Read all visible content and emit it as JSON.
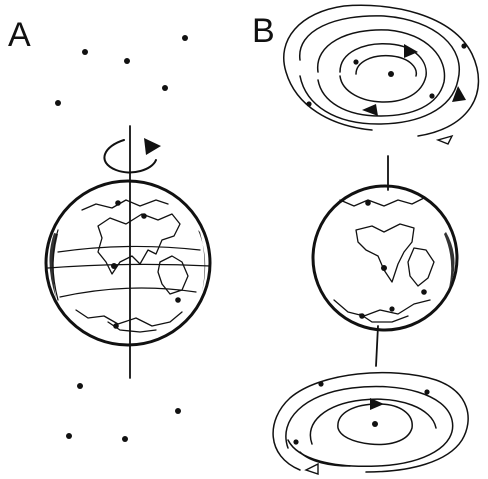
{
  "panels": [
    {
      "id": "A",
      "label": "A"
    },
    {
      "id": "B",
      "label": "B"
    }
  ],
  "colors": {
    "ink": "#111111",
    "background": "#ffffff"
  },
  "icons": {
    "rotation": "curved-arrow-icon",
    "globe": "earth-globe-icon",
    "star": "star-dot-icon",
    "star_trail": "circular-star-trail-icon"
  }
}
